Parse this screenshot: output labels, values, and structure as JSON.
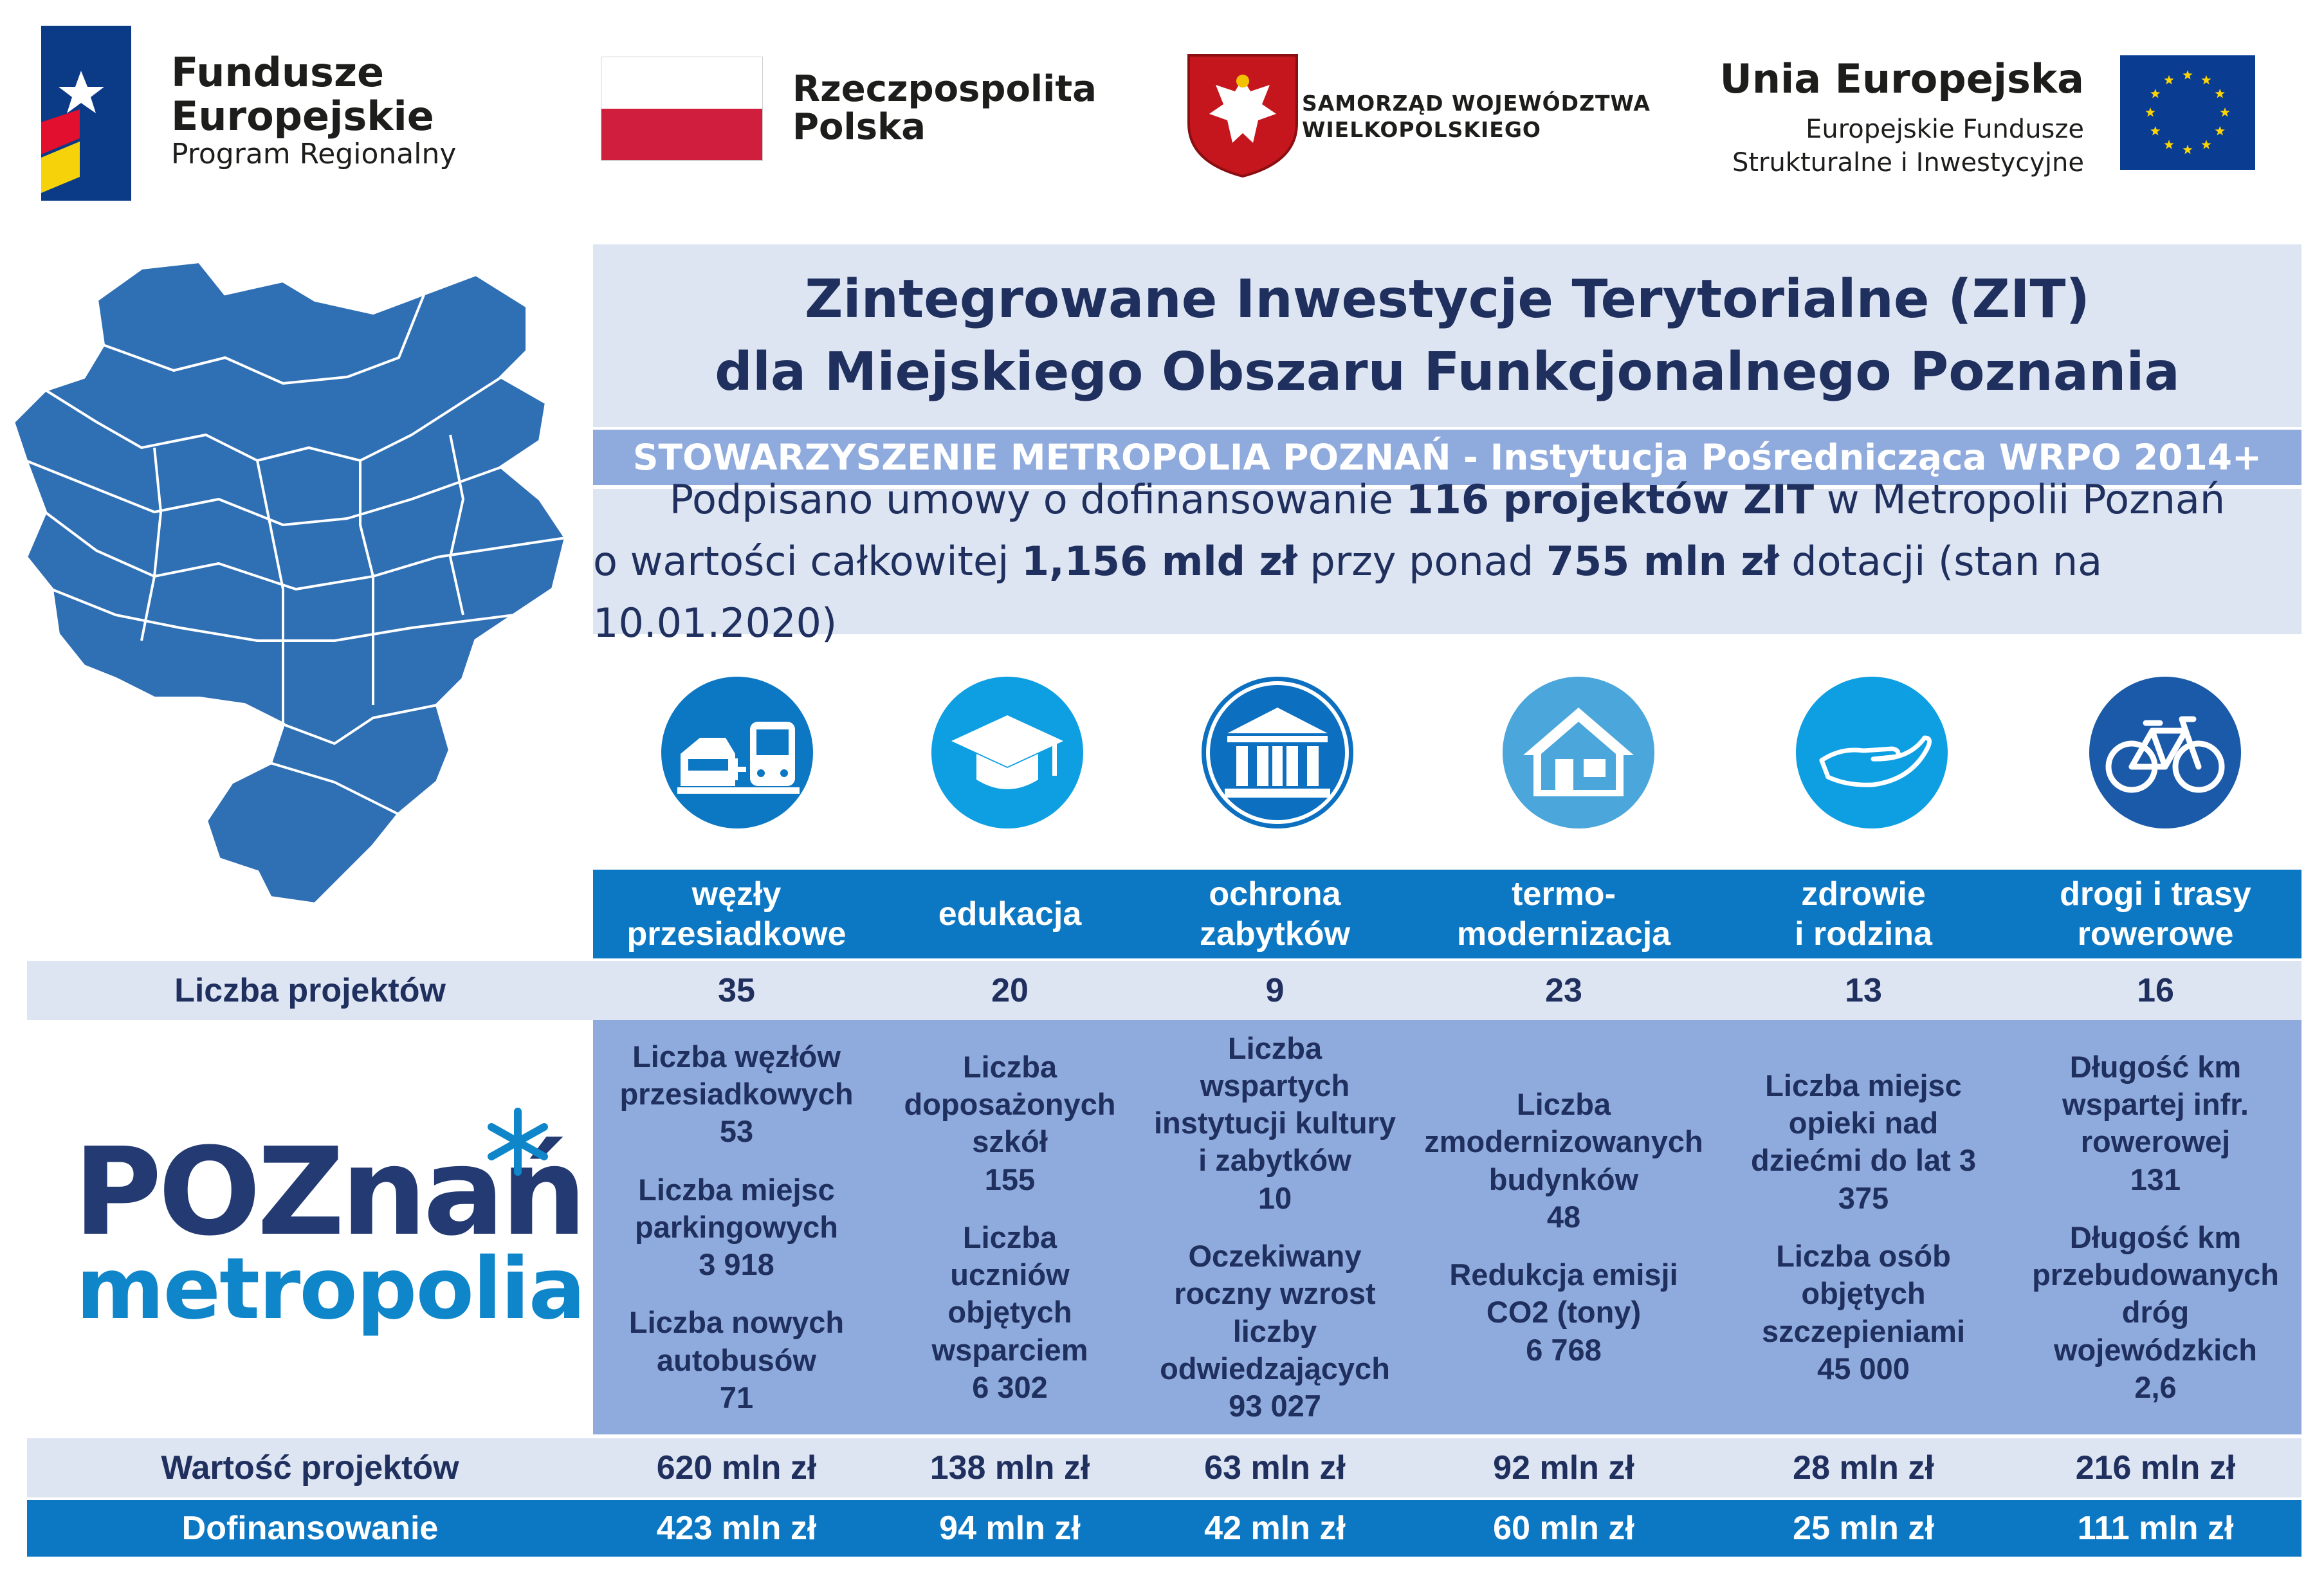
{
  "logos": {
    "fe": {
      "line1": "Fundusze",
      "line2": "Europejskie",
      "line3": "Program Regionalny"
    },
    "rp": {
      "line1": "Rzeczpospolita",
      "line2": "Polska"
    },
    "samorzad": {
      "line1": "SAMORZĄD WOJEWÓDZTWA",
      "line2": "WIELKOPOLSKIEGO"
    },
    "ue": {
      "line1": "Unia Europejska",
      "line2": "Europejskie Fundusze",
      "line3": "Strukturalne i Inwestycyjne"
    },
    "metropolia": {
      "line1": "POZnań",
      "line2": "metropolia"
    }
  },
  "header": {
    "title_line1": "Zintegrowane Inwestycje Terytorialne (ZIT)",
    "title_line2": "dla Miejskiego Obszaru Funkcjonalnego Poznania",
    "subtitle": "STOWARZYSZENIE METROPOLIA POZNAŃ - Instytucja Pośrednicząca WRPO 2014+",
    "info1_a": "Podpisano umowy o dofinansowanie ",
    "info1_b": "116 projektów ZIT",
    "info1_c": " w Metropolii Poznań",
    "info2_a": "o wartości całkowitej ",
    "info2_b": "1,156 mld zł",
    "info2_c": " przy ponad ",
    "info2_d": "755 mln zł",
    "info2_e": " dotacji (stan na 10.01.2020)"
  },
  "colors": {
    "dark_blue": "#1f2f5e",
    "table_blue": "#0c77c2",
    "light_row": "#dde4f2",
    "mid_row": "#8faadc"
  },
  "icons": [
    "transfer-hub-icon",
    "graduation-cap-icon",
    "heritage-building-icon",
    "house-icon",
    "caring-hand-icon",
    "bicycle-icon"
  ],
  "table": {
    "categories": [
      {
        "line1": "węzły",
        "line2": "przesiadkowe"
      },
      {
        "line1": "edukacja",
        "line2": ""
      },
      {
        "line1": "ochrona",
        "line2": "zabytków"
      },
      {
        "line1": "termo-",
        "line2": "modernizacja"
      },
      {
        "line1": "zdrowie",
        "line2": "i rodzina"
      },
      {
        "line1": "drogi i trasy",
        "line2": "rowerowe"
      }
    ],
    "liczba_label": "Liczba projektów",
    "liczba": [
      "35",
      "20",
      "9",
      "23",
      "13",
      "16"
    ],
    "indicators": [
      [
        [
          "Liczba węzłów",
          "przesiadkowych",
          "53"
        ],
        [
          "Liczba miejsc",
          "parkingowych",
          "3 918"
        ],
        [
          "Liczba nowych",
          "autobusów",
          "71"
        ]
      ],
      [
        [
          "Liczba",
          "doposażonych",
          "szkół",
          "155"
        ],
        [
          "Liczba",
          "uczniów",
          "objętych",
          "wsparciem",
          "6 302"
        ]
      ],
      [
        [
          "Liczba",
          "wspartych",
          "instytucji kultury",
          "i zabytków",
          "10"
        ],
        [
          "Oczekiwany",
          "roczny wzrost",
          "liczby",
          "odwiedzających",
          "93 027"
        ]
      ],
      [
        [
          "Liczba",
          "zmodernizowanych",
          "budynków",
          "48"
        ],
        [
          "Redukcja emisji",
          "CO2 (tony)",
          "6 768"
        ]
      ],
      [
        [
          "Liczba miejsc",
          "opieki nad",
          "dziećmi do lat 3",
          "375"
        ],
        [
          "Liczba osób",
          "objętych",
          "szczepieniami",
          "45 000"
        ]
      ],
      [
        [
          "Długość km",
          "wspartej infr.",
          "rowerowej",
          "131"
        ],
        [
          "Długość km",
          "przebudowanych",
          "dróg",
          "wojewódzkich",
          "2,6"
        ]
      ]
    ],
    "wartosc_label": "Wartość projektów",
    "wartosc": [
      "620 mln zł",
      "138 mln zł",
      "63 mln zł",
      "92 mln zł",
      "28 mln zł",
      "216 mln zł"
    ],
    "dof_label": "Dofinansowanie",
    "dof": [
      "423 mln zł",
      "94 mln zł",
      "42 mln zł",
      "60 mln zł",
      "25 mln zł",
      "111 mln zł"
    ]
  }
}
